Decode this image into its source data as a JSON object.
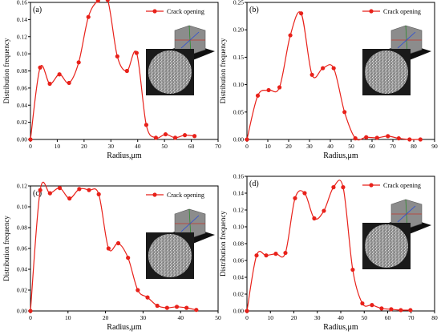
{
  "chart_data": [
    {
      "panel_label": "(a)",
      "type": "line",
      "xlabel": "Radius,μm",
      "ylabel": "Distribution frequency",
      "xlim": [
        0,
        70
      ],
      "ylim": [
        0,
        0.16
      ],
      "xticks": [
        "0",
        "10",
        "20",
        "30",
        "40",
        "50",
        "60",
        "70"
      ],
      "yticks": [
        "0.00",
        "0.02",
        "0.04",
        "0.06",
        "0.08",
        "0.10",
        "0.12",
        "0.14",
        "0.16"
      ],
      "legend": "top-right",
      "series": [
        {
          "name": "Crack opening",
          "color": "#e8211a",
          "x": [
            0,
            3.6,
            7.2,
            10.8,
            14.4,
            18,
            21.6,
            25.2,
            28.8,
            32.4,
            36,
            39.6,
            43.2,
            46.8,
            50.4,
            54,
            57.6,
            61.2
          ],
          "y": [
            0.0,
            0.084,
            0.065,
            0.076,
            0.066,
            0.09,
            0.143,
            0.162,
            0.163,
            0.097,
            0.08,
            0.101,
            0.017,
            0.002,
            0.006,
            0.002,
            0.005,
            0.004
          ]
        }
      ],
      "insets": [
        "crack-network-3d",
        "ct-slice-circular"
      ]
    },
    {
      "panel_label": "(b)",
      "type": "line",
      "xlabel": "Radius,μm",
      "ylabel": "Distribution frequency",
      "xlim": [
        0,
        90
      ],
      "ylim": [
        0,
        0.25
      ],
      "xticks": [
        "0",
        "10",
        "20",
        "30",
        "40",
        "50",
        "60",
        "70",
        "80",
        "90"
      ],
      "yticks": [
        "0.00",
        "0.05",
        "0.10",
        "0.15",
        "0.20",
        "0.25"
      ],
      "legend": "top-right",
      "series": [
        {
          "name": "Crack opening",
          "color": "#e8211a",
          "x": [
            0,
            5.2,
            10.4,
            15.6,
            20.8,
            26,
            31.2,
            36.4,
            41.6,
            46.8,
            52,
            57.2,
            62.4,
            67.6,
            72.8,
            78,
            83.2
          ],
          "y": [
            0.0,
            0.08,
            0.09,
            0.095,
            0.19,
            0.23,
            0.118,
            0.13,
            0.13,
            0.05,
            0.002,
            0.004,
            0.003,
            0.006,
            0.002,
            0.0,
            0.0
          ]
        }
      ],
      "insets": [
        "crack-network-3d",
        "ct-slice-circular"
      ]
    },
    {
      "panel_label": "(c)",
      "type": "line",
      "xlabel": "Radius,μm",
      "ylabel": "Distribution frequency",
      "xlim": [
        0,
        50
      ],
      "ylim": [
        0,
        0.12
      ],
      "xticks": [
        "0",
        "10",
        "20",
        "30",
        "40",
        "50"
      ],
      "yticks": [
        "0.00",
        "0.02",
        "0.04",
        "0.06",
        "0.08",
        "0.10",
        "0.12"
      ],
      "legend": "top-right",
      "series": [
        {
          "name": "Crack opening",
          "color": "#e8211a",
          "x": [
            0,
            2.6,
            5.2,
            7.8,
            10.4,
            13,
            15.6,
            18.2,
            20.8,
            23.4,
            26,
            28.6,
            31.2,
            33.8,
            36.4,
            39,
            41.6,
            44.2
          ],
          "y": [
            0.0,
            0.116,
            0.113,
            0.118,
            0.108,
            0.117,
            0.116,
            0.112,
            0.06,
            0.065,
            0.051,
            0.02,
            0.013,
            0.005,
            0.003,
            0.004,
            0.003,
            0.001
          ]
        }
      ],
      "insets": [
        "crack-network-3d",
        "ct-slice-circular"
      ]
    },
    {
      "panel_label": "(d)",
      "type": "line",
      "xlabel": "Radius,μm",
      "ylabel": "Distribution frequency",
      "xlim": [
        0,
        80
      ],
      "ylim": [
        0,
        0.16
      ],
      "xticks": [
        "0",
        "10",
        "20",
        "30",
        "40",
        "50",
        "60",
        "70",
        "80"
      ],
      "yticks": [
        "0.00",
        "0.02",
        "0.04",
        "0.06",
        "0.08",
        "0.10",
        "0.12",
        "0.14",
        "0.16"
      ],
      "legend": "top-right",
      "series": [
        {
          "name": "Crack opening",
          "color": "#e8211a",
          "x": [
            0,
            4.1,
            8.2,
            12.3,
            16.4,
            20.5,
            24.6,
            28.7,
            32.8,
            36.9,
            41,
            45.1,
            49.2,
            53.3,
            57.4,
            61.5,
            65.6,
            69.7
          ],
          "y": [
            0.0,
            0.066,
            0.066,
            0.068,
            0.069,
            0.134,
            0.14,
            0.11,
            0.119,
            0.147,
            0.147,
            0.049,
            0.009,
            0.007,
            0.003,
            0.002,
            0.001,
            0.001
          ]
        }
      ],
      "insets": [
        "crack-network-3d",
        "ct-slice-circular"
      ]
    }
  ]
}
